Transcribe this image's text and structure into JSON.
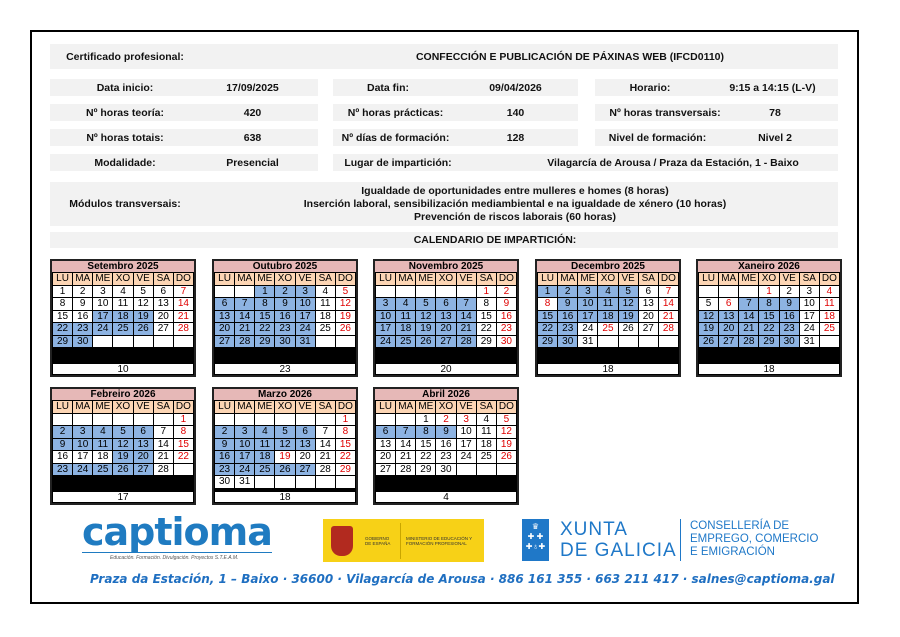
{
  "info": {
    "cert_label": "Certificado profesional:",
    "cert_value": "CONFECCIÓN E PUBLICACIÓN DE PÁXINAS WEB (IFCD0110)",
    "start_label": "Data inicio:",
    "start_value": "17/09/2025",
    "end_label": "Data fin:",
    "end_value": "09/04/2026",
    "schedule_label": "Horario:",
    "schedule_value": "9:15 a 14:15 (L-V)",
    "theory_label": "Nº horas teoría:",
    "theory_value": "420",
    "practice_label": "Nº horas prácticas:",
    "practice_value": "140",
    "transv_label": "Nº horas transversais:",
    "transv_value": "78",
    "total_label": "Nº horas totais:",
    "total_value": "638",
    "days_label": "Nº días de formación:",
    "days_value": "128",
    "level_label": "Nivel de formación:",
    "level_value": "Nivel 2",
    "mode_label": "Modalidade:",
    "mode_value": "Presencial",
    "place_label": "Lugar de impartición:",
    "place_value": "Vilagarcía de Arousa / Praza da Estación, 1 - Baixo",
    "modules_label": "Módulos transversais:",
    "modules": [
      "Igualdade de oportunidades entre mulleres e homes (8 horas)",
      "Inserción laboral, sensibilización mediambiental e na igualdade de xénero (10 horas)",
      "Prevención de riscos laborais (60 horas)"
    ],
    "calendar_title": "CALENDARIO DE IMPARTICIÓN:"
  },
  "weekdays": [
    "LU",
    "MA",
    "ME",
    "XO",
    "VE",
    "SA",
    "DO"
  ],
  "colors": {
    "training": "#8db3e2",
    "holiday": "#e00000",
    "month_header": "#e6b8b7",
    "weekday_header": "#fcd5b4"
  },
  "months": [
    {
      "name": "Setembro 2025",
      "count": "10",
      "weeks": [
        [
          1,
          2,
          3,
          4,
          5,
          6,
          7
        ],
        [
          8,
          9,
          10,
          11,
          12,
          13,
          14
        ],
        [
          15,
          16,
          17,
          18,
          19,
          20,
          21
        ],
        [
          22,
          23,
          24,
          25,
          26,
          27,
          28
        ],
        [
          29,
          30,
          "",
          "",
          "",
          "",
          ""
        ]
      ],
      "training": [
        17,
        18,
        19,
        22,
        23,
        24,
        25,
        26,
        29,
        30
      ],
      "red": [
        7,
        14,
        21,
        28
      ]
    },
    {
      "name": "Outubro 2025",
      "count": "23",
      "weeks": [
        [
          "",
          "",
          1,
          2,
          3,
          4,
          5
        ],
        [
          6,
          7,
          8,
          9,
          10,
          11,
          12
        ],
        [
          13,
          14,
          15,
          16,
          17,
          18,
          19
        ],
        [
          20,
          21,
          22,
          23,
          24,
          25,
          26
        ],
        [
          27,
          28,
          29,
          30,
          31,
          "",
          ""
        ]
      ],
      "training": [
        1,
        2,
        3,
        6,
        7,
        8,
        9,
        10,
        13,
        14,
        15,
        16,
        17,
        20,
        21,
        22,
        23,
        24,
        27,
        28,
        29,
        30,
        31
      ],
      "red": [
        5,
        12,
        19,
        26
      ]
    },
    {
      "name": "Novembro 2025",
      "count": "20",
      "weeks": [
        [
          "",
          "",
          "",
          "",
          "",
          1,
          2
        ],
        [
          3,
          4,
          5,
          6,
          7,
          8,
          9
        ],
        [
          10,
          11,
          12,
          13,
          14,
          15,
          16
        ],
        [
          17,
          18,
          19,
          20,
          21,
          22,
          23
        ],
        [
          24,
          25,
          26,
          27,
          28,
          29,
          30
        ]
      ],
      "training": [
        3,
        4,
        5,
        6,
        7,
        10,
        11,
        12,
        13,
        14,
        17,
        18,
        19,
        20,
        21,
        24,
        25,
        26,
        27,
        28
      ],
      "red": [
        1,
        2,
        9,
        16,
        23,
        30
      ]
    },
    {
      "name": "Decembro 2025",
      "count": "18",
      "weeks": [
        [
          1,
          2,
          3,
          4,
          5,
          6,
          7
        ],
        [
          8,
          9,
          10,
          11,
          12,
          13,
          14
        ],
        [
          15,
          16,
          17,
          18,
          19,
          20,
          21
        ],
        [
          22,
          23,
          24,
          25,
          26,
          27,
          28
        ],
        [
          29,
          30,
          31,
          "",
          "",
          "",
          ""
        ]
      ],
      "training": [
        1,
        2,
        3,
        4,
        5,
        9,
        10,
        11,
        12,
        15,
        16,
        17,
        18,
        19,
        22,
        23,
        29,
        30
      ],
      "red": [
        7,
        8,
        14,
        21,
        25,
        28
      ]
    },
    {
      "name": "Xaneiro 2026",
      "count": "18",
      "weeks": [
        [
          "",
          "",
          "",
          1,
          2,
          3,
          4
        ],
        [
          5,
          6,
          7,
          8,
          9,
          10,
          11
        ],
        [
          12,
          13,
          14,
          15,
          16,
          17,
          18
        ],
        [
          19,
          20,
          21,
          22,
          23,
          24,
          25
        ],
        [
          26,
          27,
          28,
          29,
          30,
          31,
          ""
        ]
      ],
      "training": [
        7,
        8,
        9,
        12,
        13,
        14,
        15,
        16,
        19,
        20,
        21,
        22,
        23,
        26,
        27,
        28,
        29,
        30
      ],
      "red": [
        1,
        4,
        6,
        11,
        18,
        25
      ]
    },
    {
      "name": "Febreiro 2026",
      "count": "17",
      "weeks": [
        [
          "",
          "",
          "",
          "",
          "",
          "",
          1
        ],
        [
          2,
          3,
          4,
          5,
          6,
          7,
          8
        ],
        [
          9,
          10,
          11,
          12,
          13,
          14,
          15
        ],
        [
          16,
          17,
          18,
          19,
          20,
          21,
          22
        ],
        [
          23,
          24,
          25,
          26,
          27,
          28,
          ""
        ]
      ],
      "training": [
        2,
        3,
        4,
        5,
        6,
        9,
        10,
        11,
        12,
        13,
        19,
        20,
        23,
        24,
        25,
        26,
        27
      ],
      "red": [
        1,
        8,
        15,
        22
      ]
    },
    {
      "name": "Marzo 2026",
      "count": "18",
      "weeks": [
        [
          "",
          "",
          "",
          "",
          "",
          "",
          1
        ],
        [
          2,
          3,
          4,
          5,
          6,
          7,
          8
        ],
        [
          9,
          10,
          11,
          12,
          13,
          14,
          15
        ],
        [
          16,
          17,
          18,
          19,
          20,
          21,
          22
        ],
        [
          23,
          24,
          25,
          26,
          27,
          28,
          29
        ],
        [
          30,
          31,
          "",
          "",
          "",
          "",
          ""
        ]
      ],
      "training": [
        2,
        3,
        4,
        5,
        6,
        9,
        10,
        11,
        12,
        13,
        16,
        17,
        18,
        23,
        24,
        25,
        26,
        27
      ],
      "red": [
        1,
        8,
        15,
        19,
        22,
        29
      ]
    },
    {
      "name": "Abril 2026",
      "count": "4",
      "weeks": [
        [
          "",
          "",
          1,
          2,
          3,
          4,
          5
        ],
        [
          6,
          7,
          8,
          9,
          10,
          11,
          12
        ],
        [
          13,
          14,
          15,
          16,
          17,
          18,
          19
        ],
        [
          20,
          21,
          22,
          23,
          24,
          25,
          26
        ],
        [
          27,
          28,
          29,
          30,
          "",
          "",
          ""
        ]
      ],
      "training": [
        6,
        7,
        8,
        9
      ],
      "red": [
        2,
        3,
        5,
        12,
        19,
        26
      ]
    }
  ],
  "logos": {
    "captioma": "captioma",
    "captioma_tagline": "Educación. Formación. Divulgación. Proyectos S.T.E.A.M.",
    "gov_1": "GOBIERNO DE ESPAÑA",
    "gov_2": "MINISTERIO DE EDUCACIÓN Y FORMACIÓN PROFESIONAL",
    "xunta": [
      "XUNTA",
      "DE GALICIA"
    ],
    "conselleria": [
      "CONSELLERÍA DE",
      "EMPREGO, COMERCIO",
      "E EMIGRACIÓN"
    ]
  },
  "footer": "Praza da Estación, 1 – Baixo · 36600 · Vilagarcía de Arousa · 886 161 355 · 663 211 417 · salnes@captioma.gal"
}
